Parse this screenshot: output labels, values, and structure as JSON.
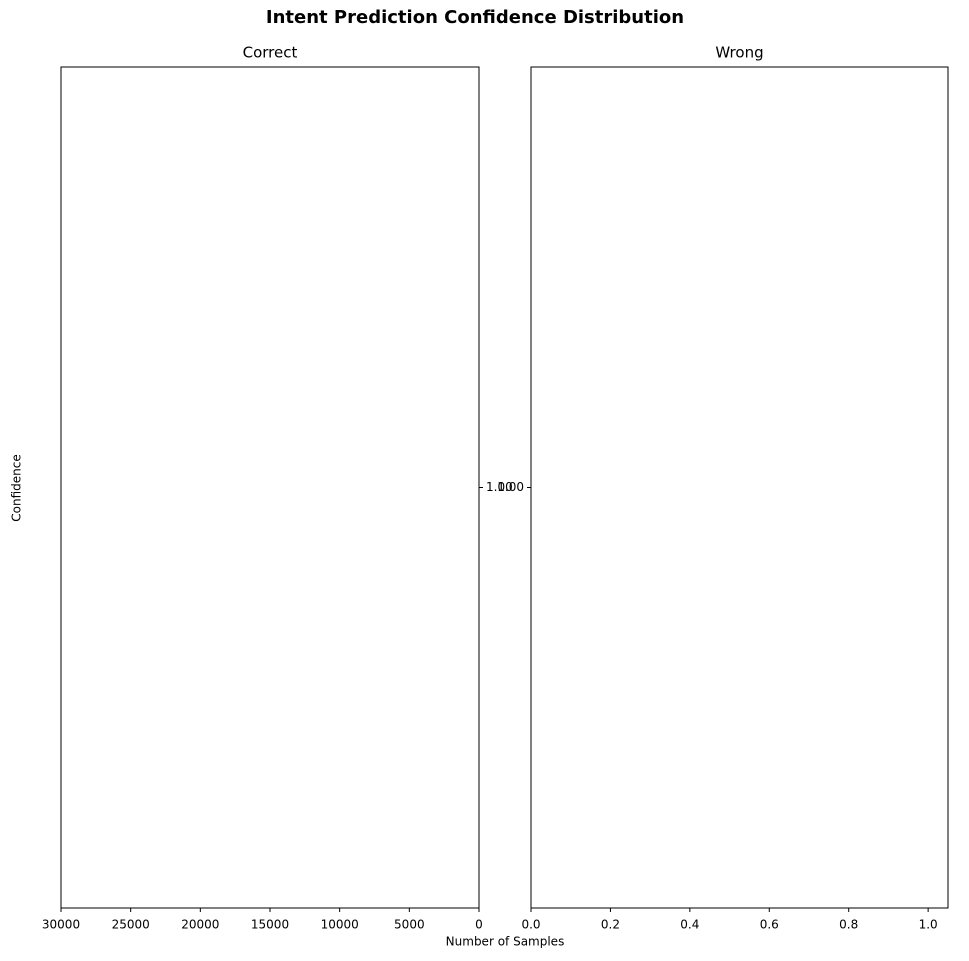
{
  "title": "Intent Prediction Confidence Distribution",
  "xlabel": "Number of Samples",
  "ylabel": "Confidence",
  "chart_data": [
    {
      "type": "barh",
      "title": "Correct",
      "xlim": [
        30000,
        0
      ],
      "xticks": [
        0,
        5000,
        10000,
        15000,
        20000,
        25000,
        30000
      ],
      "ylim": [
        0.95,
        1.05
      ],
      "yticks": [
        {
          "value": 1,
          "label": "1.00"
        }
      ],
      "ytick_side": "right"
    },
    {
      "type": "barh",
      "title": "Wrong",
      "xlim": [
        0,
        1.05
      ],
      "xticks": [
        {
          "value": 0,
          "label": "0.0"
        },
        0.2,
        0.4,
        0.6,
        0.8,
        {
          "value": 1,
          "label": "1.0"
        }
      ],
      "ylim": [
        0.95,
        1.05
      ],
      "yticks": [
        {
          "value": 1,
          "label": "1.00"
        }
      ],
      "ytick_side": "left"
    }
  ]
}
